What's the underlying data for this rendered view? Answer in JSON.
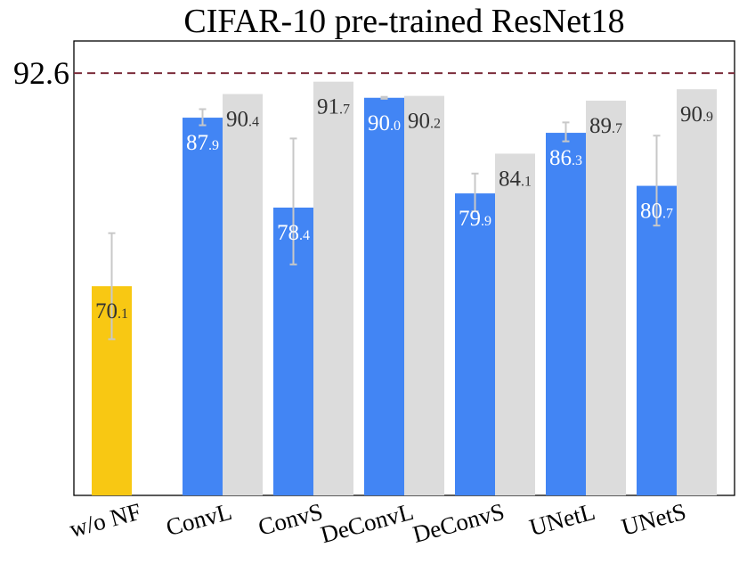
{
  "colors": {
    "baseline": "#F8C813",
    "primary": "#4285F4",
    "secondary": "#DCDCDC",
    "reference_line": "#7B2D3B",
    "error_bar": "#C8C8C8",
    "label_on_blue": "#FFFFFF",
    "label_dark": "#333333"
  },
  "chart_data": {
    "type": "bar",
    "title": "CIFAR-10 pre-trained ResNet18",
    "xlabel": "",
    "ylabel": "",
    "reference_line": {
      "value": 92.6,
      "label": "92.6",
      "style": "dashed"
    },
    "categories": [
      "w/o NF",
      "ConvL",
      "ConvS",
      "DeConvL",
      "DeConvS",
      "UNetL",
      "UNetS"
    ],
    "series": [
      {
        "values": [
          70.1,
          87.9,
          78.4,
          90.0,
          79.9,
          86.3,
          80.7
        ],
        "labels": [
          {
            "main": "70",
            "sub": ".1"
          },
          {
            "main": "87",
            "sub": ".9"
          },
          {
            "main": "78",
            "sub": ".4"
          },
          {
            "main": "90",
            "sub": ".0"
          },
          {
            "main": "79",
            "sub": ".9"
          },
          {
            "main": "86",
            "sub": ".3"
          },
          {
            "main": "80",
            "sub": ".7"
          }
        ],
        "error_low": [
          64.5,
          87.1,
          72.4,
          89.9,
          78.0,
          85.4,
          76.5
        ],
        "error_high": [
          75.7,
          88.8,
          85.7,
          90.1,
          82.0,
          87.4,
          86.0
        ]
      },
      {
        "values": [
          null,
          90.4,
          91.7,
          90.2,
          84.1,
          89.7,
          90.9
        ],
        "labels": [
          null,
          {
            "main": "90",
            "sub": ".4"
          },
          {
            "main": "91",
            "sub": ".7"
          },
          {
            "main": "90",
            "sub": ".2"
          },
          {
            "main": "84",
            "sub": ".1"
          },
          {
            "main": "89",
            "sub": ".7"
          },
          {
            "main": "90",
            "sub": ".9"
          }
        ]
      }
    ],
    "ylim": [
      48,
      96
    ],
    "grid": false,
    "legend": "none"
  }
}
